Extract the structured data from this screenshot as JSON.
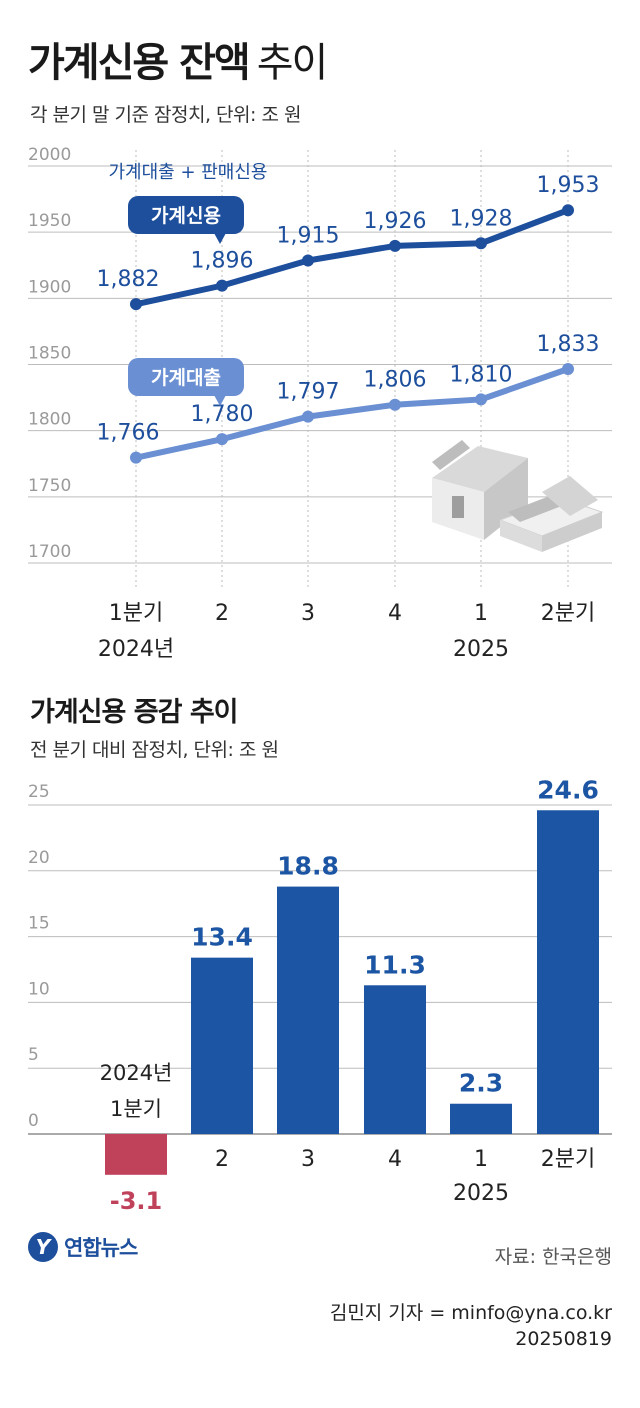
{
  "title": {
    "bold": "가계신용 잔액",
    "light": "추이"
  },
  "subtitle": "각 분기 말 기준 잠정치, 단위: 조 원",
  "line_callout": "가계대출 + 판매신용",
  "section2_title": "가계신용 증감 추이",
  "section2_subtitle": "전 분기 대비 잠정치, 단위: 조 원",
  "logo_mark": "Y",
  "logo_text": "연합뉴스",
  "source": "자료: 한국은행",
  "credit_author": "김민지 기자 = minfo@yna.co.kr",
  "credit_date": "20250819",
  "colors": {
    "dark_blue": "#1e4f9c",
    "light_blue": "#6a8fd2",
    "bar_blue": "#1b55a3",
    "negative_red": "#c0415a",
    "grid": "#bdbdbd",
    "tick_text": "#9a9a9a"
  },
  "chart_data": [
    {
      "type": "line",
      "categories": [
        "1분기",
        "2",
        "3",
        "4",
        "1",
        "2분기"
      ],
      "year_labels": [
        "2024년",
        "",
        "",
        "",
        "2025",
        ""
      ],
      "ylim": [
        1700,
        2000
      ],
      "yticks": [
        1700,
        1750,
        1800,
        1850,
        1900,
        1950,
        2000
      ],
      "grid": true,
      "series": [
        {
          "name": "가계신용",
          "values": [
            1882,
            1896,
            1915,
            1926,
            1928,
            1953
          ],
          "labels": [
            "1,882",
            "1,896",
            "1,915",
            "1,926",
            "1,928",
            "1,953"
          ]
        },
        {
          "name": "가계대출",
          "values": [
            1766,
            1780,
            1797,
            1806,
            1810,
            1833
          ],
          "labels": [
            "1,766",
            "1,780",
            "1,797",
            "1,806",
            "1,810",
            "1,833"
          ]
        }
      ]
    },
    {
      "type": "bar",
      "categories": [
        "1분기",
        "2",
        "3",
        "4",
        "1",
        "2분기"
      ],
      "year_labels": [
        "2024년",
        "",
        "",
        "",
        "2025",
        ""
      ],
      "values": [
        -3.1,
        13.4,
        18.8,
        11.3,
        2.3,
        24.6
      ],
      "labels": [
        "-3.1",
        "13.4",
        "18.8",
        "11.3",
        "2.3",
        "24.6"
      ],
      "ylim": [
        -3.1,
        25
      ],
      "yticks": [
        0,
        5,
        10,
        15,
        20,
        25
      ],
      "grid": true
    }
  ]
}
